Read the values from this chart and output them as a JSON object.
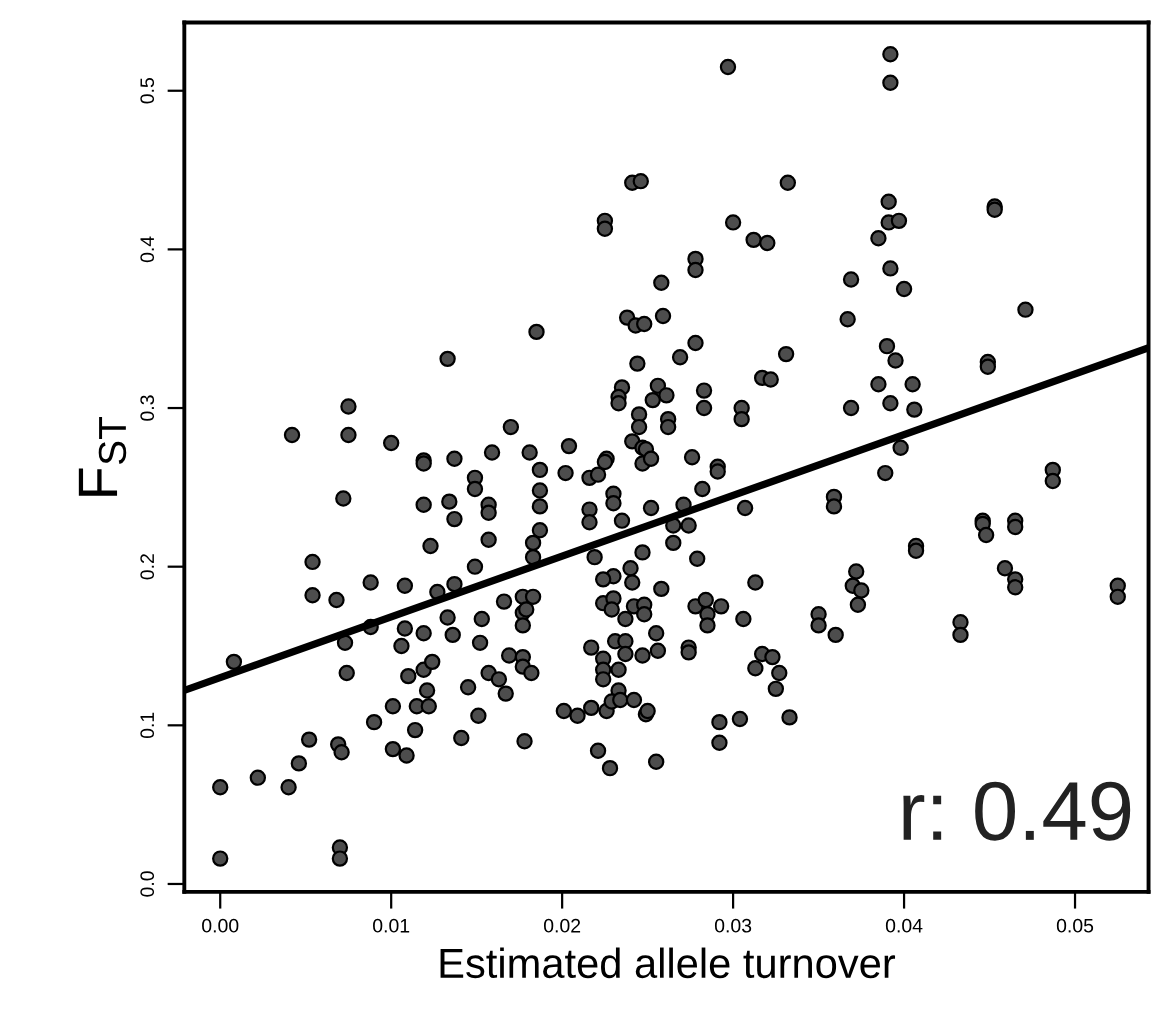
{
  "chart_data": {
    "type": "scatter",
    "xlabel": "Estimated allele turnover",
    "ylabel": "F$_{ST}$",
    "annotations": [
      "r: 0.49"
    ],
    "xlim": [
      -0.0021,
      0.0543
    ],
    "ylim": [
      -0.005,
      0.543
    ],
    "xticks": [
      {
        "value": 0,
        "label": "0.00"
      },
      0.01,
      0.02,
      0.03,
      0.04,
      0.05
    ],
    "yticks": [
      {
        "value": 0,
        "label": "0.0"
      },
      0.1,
      0.2,
      0.3,
      0.4,
      0.5
    ],
    "series": [
      {
        "color": "#4d4d4d",
        "marker": "circle",
        "x": [
          0.0185,
          0.0133,
          0.0075,
          0.0042,
          0.0075,
          0.01,
          0.017,
          0.0159,
          0.0181,
          0.0119,
          0.0137,
          0.0297,
          0.0241,
          0.0246,
          0.0332,
          0.0225,
          0.0225,
          0.03,
          0.0312,
          0.032,
          0.0278,
          0.0278,
          0.0258,
          0.0238,
          0.0243,
          0.0248,
          0.0259,
          0.0278,
          0.0269,
          0.0244,
          0.0331,
          0.0317,
          0.0322,
          0.0235,
          0.0233,
          0.0233,
          0.0256,
          0.0261,
          0.0253,
          0.0283,
          0.0283,
          0.0245,
          0.0245,
          0.0262,
          0.0262,
          0.0305,
          0.0305,
          0.0204,
          0.0241,
          0.0247,
          0.0226,
          0.0276,
          0.0392,
          0.0392,
          0.0391,
          0.0391,
          0.0397,
          0.0385,
          0.0453,
          0.0453,
          0.0369,
          0.0392,
          0.04,
          0.0367,
          0.0471,
          0.039,
          0.0395,
          0.0449,
          0.0449,
          0.0385,
          0.0405,
          0.0369,
          0.0392,
          0.0406,
          0.0398,
          0.0119,
          0.0149,
          0.0149,
          0.0187,
          0.0072,
          0.0119,
          0.0134,
          0.0137,
          0.0157,
          0.0157,
          0.0187,
          0.0187,
          0.0123,
          0.0157,
          0.0149,
          0.0187,
          0.0183,
          0.0183,
          0.0054,
          0.0054,
          0.0068,
          0.0088,
          0.0108,
          0.0127,
          0.0137,
          0.0008,
          0.0073,
          0.0074,
          0.0088,
          0.0108,
          0.0106,
          0.0119,
          0.0133,
          0.0136,
          0.0153,
          0.0152,
          0.0166,
          0.0177,
          0.0177,
          0.0177,
          0.0183,
          0.011,
          0.0119,
          0.0124,
          0.0121,
          0.0115,
          0.0122,
          0.0101,
          0.009,
          0.0114,
          0.0145,
          0.0157,
          0.0163,
          0.0167,
          0.0169,
          0.0177,
          0.0177,
          0.0182,
          0.0151,
          0.0141,
          0.0178,
          0.0052,
          0.0069,
          0.0071,
          0.0046,
          0.0101,
          0.0109,
          0.0,
          0.0022,
          0.004,
          0.0,
          0.007,
          0.007,
          0.0202,
          0.0216,
          0.0221,
          0.0225,
          0.0249,
          0.0247,
          0.0252,
          0.0291,
          0.0291,
          0.0282,
          0.023,
          0.023,
          0.0216,
          0.0216,
          0.0235,
          0.0252,
          0.0271,
          0.0265,
          0.0274,
          0.0307,
          0.0359,
          0.0359,
          0.0219,
          0.0247,
          0.0265,
          0.0279,
          0.024,
          0.0241,
          0.023,
          0.0224,
          0.0258,
          0.0313,
          0.0179,
          0.0224,
          0.023,
          0.0229,
          0.0237,
          0.0242,
          0.0248,
          0.0248,
          0.0278,
          0.0284,
          0.0285,
          0.0285,
          0.0293,
          0.0306,
          0.035,
          0.035,
          0.036,
          0.0217,
          0.0224,
          0.0231,
          0.0237,
          0.0237,
          0.0247,
          0.0255,
          0.0256,
          0.0274,
          0.0274,
          0.0224,
          0.0224,
          0.0233,
          0.0317,
          0.0323,
          0.0313,
          0.0327,
          0.0325,
          0.0233,
          0.0201,
          0.0209,
          0.0217,
          0.0226,
          0.0229,
          0.0234,
          0.0242,
          0.0249,
          0.025,
          0.0292,
          0.0304,
          0.0333,
          0.0292,
          0.0221,
          0.0228,
          0.0255,
          0.0389,
          0.0487,
          0.0487,
          0.0407,
          0.0407,
          0.0446,
          0.0446,
          0.0448,
          0.0465,
          0.0465,
          0.0459,
          0.0465,
          0.0465,
          0.0372,
          0.037,
          0.0375,
          0.0373,
          0.0525,
          0.0525,
          0.0433,
          0.0433
        ],
        "values": [
          0.348,
          0.331,
          0.301,
          0.283,
          0.283,
          0.278,
          0.288,
          0.272,
          0.272,
          0.267,
          0.268,
          0.515,
          0.442,
          0.443,
          0.442,
          0.418,
          0.413,
          0.417,
          0.406,
          0.404,
          0.394,
          0.387,
          0.379,
          0.357,
          0.352,
          0.353,
          0.358,
          0.341,
          0.332,
          0.328,
          0.334,
          0.319,
          0.318,
          0.313,
          0.307,
          0.303,
          0.314,
          0.308,
          0.305,
          0.311,
          0.3,
          0.296,
          0.288,
          0.293,
          0.288,
          0.3,
          0.293,
          0.276,
          0.279,
          0.275,
          0.268,
          0.269,
          0.523,
          0.505,
          0.43,
          0.417,
          0.418,
          0.407,
          0.427,
          0.425,
          0.381,
          0.388,
          0.375,
          0.356,
          0.362,
          0.339,
          0.33,
          0.329,
          0.326,
          0.315,
          0.315,
          0.3,
          0.303,
          0.299,
          0.275,
          0.265,
          0.256,
          0.249,
          0.261,
          0.243,
          0.239,
          0.241,
          0.23,
          0.239,
          0.234,
          0.248,
          0.238,
          0.213,
          0.217,
          0.2,
          0.223,
          0.215,
          0.206,
          0.203,
          0.182,
          0.179,
          0.19,
          0.188,
          0.184,
          0.189,
          0.14,
          0.152,
          0.133,
          0.162,
          0.161,
          0.15,
          0.158,
          0.168,
          0.157,
          0.167,
          0.152,
          0.178,
          0.181,
          0.171,
          0.163,
          0.181,
          0.131,
          0.135,
          0.14,
          0.122,
          0.112,
          0.112,
          0.112,
          0.102,
          0.097,
          0.124,
          0.133,
          0.129,
          0.12,
          0.144,
          0.143,
          0.137,
          0.133,
          0.106,
          0.092,
          0.09,
          0.091,
          0.088,
          0.083,
          0.076,
          0.085,
          0.081,
          0.061,
          0.067,
          0.061,
          0.016,
          0.023,
          0.016,
          0.259,
          0.256,
          0.258,
          0.266,
          0.274,
          0.265,
          0.268,
          0.263,
          0.26,
          0.249,
          0.246,
          0.24,
          0.236,
          0.228,
          0.229,
          0.237,
          0.239,
          0.226,
          0.226,
          0.237,
          0.244,
          0.238,
          0.206,
          0.209,
          0.215,
          0.205,
          0.199,
          0.19,
          0.194,
          0.192,
          0.186,
          0.19,
          0.173,
          0.177,
          0.18,
          0.173,
          0.167,
          0.175,
          0.176,
          0.17,
          0.175,
          0.179,
          0.17,
          0.163,
          0.175,
          0.167,
          0.17,
          0.163,
          0.157,
          0.149,
          0.142,
          0.153,
          0.153,
          0.145,
          0.144,
          0.158,
          0.147,
          0.149,
          0.146,
          0.135,
          0.129,
          0.135,
          0.145,
          0.143,
          0.136,
          0.133,
          0.123,
          0.122,
          0.109,
          0.106,
          0.111,
          0.109,
          0.115,
          0.116,
          0.116,
          0.107,
          0.109,
          0.102,
          0.104,
          0.105,
          0.089,
          0.084,
          0.073,
          0.077,
          0.259,
          0.261,
          0.254,
          0.213,
          0.21,
          0.229,
          0.227,
          0.22,
          0.229,
          0.225,
          0.199,
          0.192,
          0.187,
          0.197,
          0.188,
          0.185,
          0.176,
          0.188,
          0.181,
          0.165,
          0.157
        ]
      },
      {
        "type": "line",
        "color": "#000000",
        "x": [
          -0.0021,
          0.0543
        ],
        "values": [
          0.122,
          0.338
        ]
      }
    ]
  }
}
